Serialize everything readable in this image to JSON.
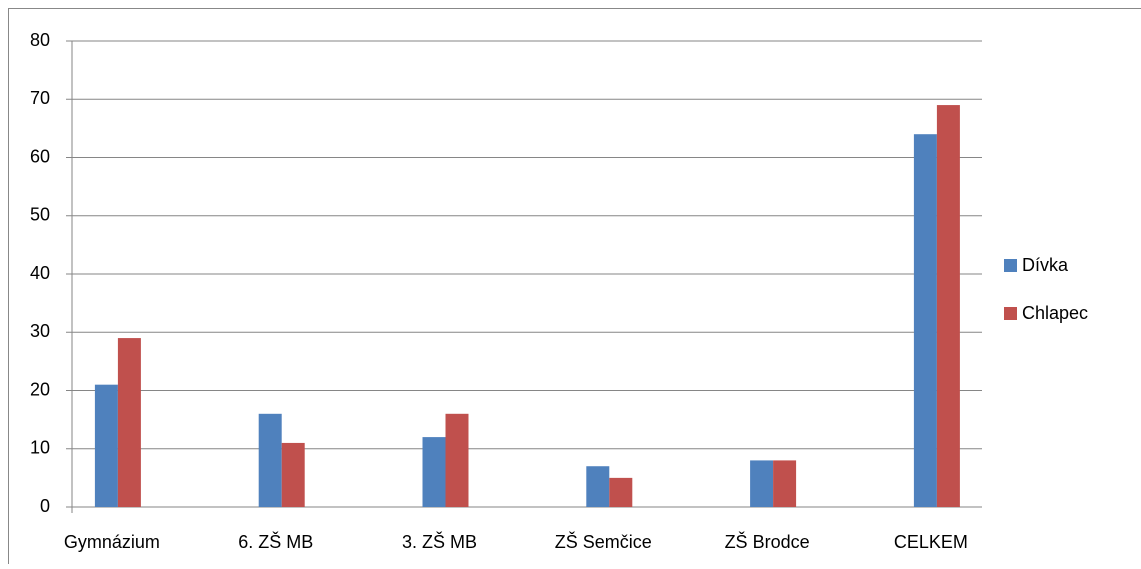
{
  "chart_data": {
    "type": "bar",
    "categories": [
      "Gymnázium",
      "6. ZŠ MB",
      "3. ZŠ MB",
      "ZŠ Semčice",
      "ZŠ Brodce",
      "CELKEM"
    ],
    "series": [
      {
        "name": "Dívka",
        "color": "#4f81bd",
        "values": [
          21,
          16,
          12,
          7,
          8,
          64
        ]
      },
      {
        "name": "Chlapec",
        "color": "#c0504d",
        "values": [
          29,
          11,
          16,
          5,
          8,
          69
        ]
      }
    ],
    "ylim": [
      0,
      80
    ],
    "yticks": [
      0,
      10,
      20,
      30,
      40,
      50,
      60,
      70,
      80
    ],
    "grid": true,
    "legend": "right"
  }
}
